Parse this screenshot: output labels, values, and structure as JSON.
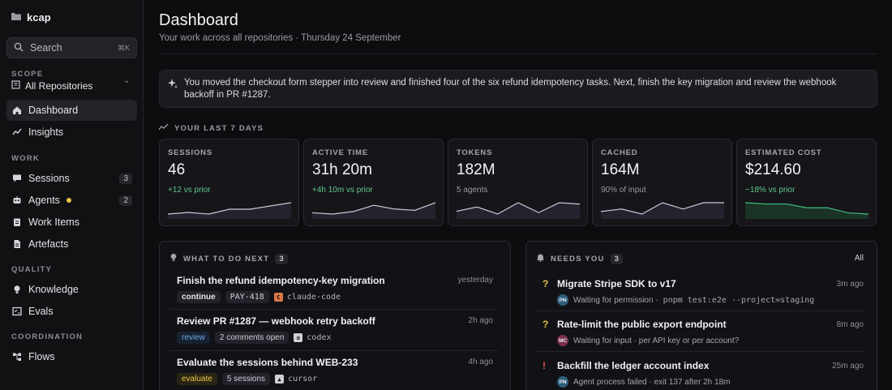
{
  "app": {
    "name": "kcap"
  },
  "search": {
    "placeholder": "Search",
    "shortcut": "⌘K"
  },
  "scope": {
    "label": "SCOPE",
    "value": "All Repositories"
  },
  "nav": {
    "top": [
      {
        "label": "Dashboard",
        "icon": "home-icon"
      },
      {
        "label": "Insights",
        "icon": "trend-icon"
      }
    ],
    "work_label": "WORK",
    "work": [
      {
        "label": "Sessions",
        "count": "3",
        "icon": "chat-icon"
      },
      {
        "label": "Agents",
        "count": "2",
        "icon": "bot-icon"
      },
      {
        "label": "Work Items",
        "icon": "clipboard-icon"
      },
      {
        "label": "Artefacts",
        "icon": "file-icon"
      }
    ],
    "quality_label": "QUALITY",
    "quality": [
      {
        "label": "Knowledge",
        "icon": "bulb-icon"
      },
      {
        "label": "Evals",
        "icon": "checklist-icon"
      }
    ],
    "coordination_label": "COORDINATION",
    "coordination": [
      {
        "label": "Flows",
        "icon": "flow-icon"
      }
    ]
  },
  "header": {
    "title": "Dashboard",
    "subtitle": "Your work across all repositories · Thursday 24 September"
  },
  "summary": "You moved the checkout form stepper into review and finished four of the six refund idempotency tasks. Next, finish the key migration and review the webhook backoff in PR #1287.",
  "stats_label": "YOUR LAST 7 DAYS",
  "stats": [
    {
      "label": "SESSIONS",
      "value": "46",
      "sub": "+12 vs prior",
      "trend": [
        3,
        4,
        3,
        6,
        6,
        8,
        10
      ],
      "color": "#8a8aa0"
    },
    {
      "label": "ACTIVE TIME",
      "value": "31h 20m",
      "sub": "+4h 10m vs prior",
      "trend": [
        3,
        2,
        4,
        9,
        6,
        5,
        11
      ],
      "color": "#8a8aa0"
    },
    {
      "label": "TOKENS",
      "value": "182M",
      "sub": "5 agents",
      "trend": [
        4,
        7,
        2,
        10,
        3,
        10,
        9
      ],
      "color": "#8a8aa0"
    },
    {
      "label": "CACHED",
      "value": "164M",
      "sub": "90% of input",
      "trend": [
        3,
        5,
        1,
        10,
        5,
        10,
        10
      ],
      "color": "#8a8aa0"
    },
    {
      "label": "ESTIMATED COST",
      "value": "$214.60",
      "sub": "−18% vs prior",
      "trend": [
        10,
        9,
        9,
        6,
        6,
        2,
        1
      ],
      "color": "#3fbf7f"
    }
  ],
  "todo": {
    "label": "WHAT TO DO NEXT",
    "count": "3",
    "items": [
      {
        "title": "Finish the refund idempotency-key migration",
        "when": "yesterday",
        "verb": "continue",
        "ref": "PAY-418",
        "agent": "claude-code",
        "agent_glyph": "C",
        "agent_color": "#d9774b"
      },
      {
        "title": "Review PR #1287 — webhook retry backoff",
        "when": "2h ago",
        "verb": "review",
        "ref": "2 comments open",
        "agent": "codex",
        "agent_glyph": "o",
        "agent_color": "#cfcfd5"
      },
      {
        "title": "Evaluate the sessions behind WEB-233",
        "when": "4h ago",
        "verb": "evaluate",
        "ref": "5 sessions",
        "agent": "cursor",
        "agent_glyph": "▲",
        "agent_color": "#cfcfd5"
      }
    ]
  },
  "needs": {
    "label": "NEEDS YOU",
    "count": "3",
    "all": "All",
    "items": [
      {
        "mark": "?",
        "mark_color": "#e8c547",
        "title": "Migrate Stripe SDK to v17",
        "when": "3m ago",
        "avatar": "PN",
        "avatar_color": "#2f5e7a",
        "meta": "Waiting for permission ·",
        "code": "pnpm test:e2e --project=staging"
      },
      {
        "mark": "?",
        "mark_color": "#e8c547",
        "title": "Rate-limit the public export endpoint",
        "when": "8m ago",
        "avatar": "MC",
        "avatar_color": "#7a2f4a",
        "meta": "Waiting for input · per API key or per account?",
        "code": ""
      },
      {
        "mark": "!",
        "mark_color": "#e0555a",
        "title": "Backfill the ledger account index",
        "when": "25m ago",
        "avatar": "PN",
        "avatar_color": "#2f5e7a",
        "meta": "Agent process failed · exit 137 after 2h 18m",
        "code": ""
      }
    ]
  }
}
